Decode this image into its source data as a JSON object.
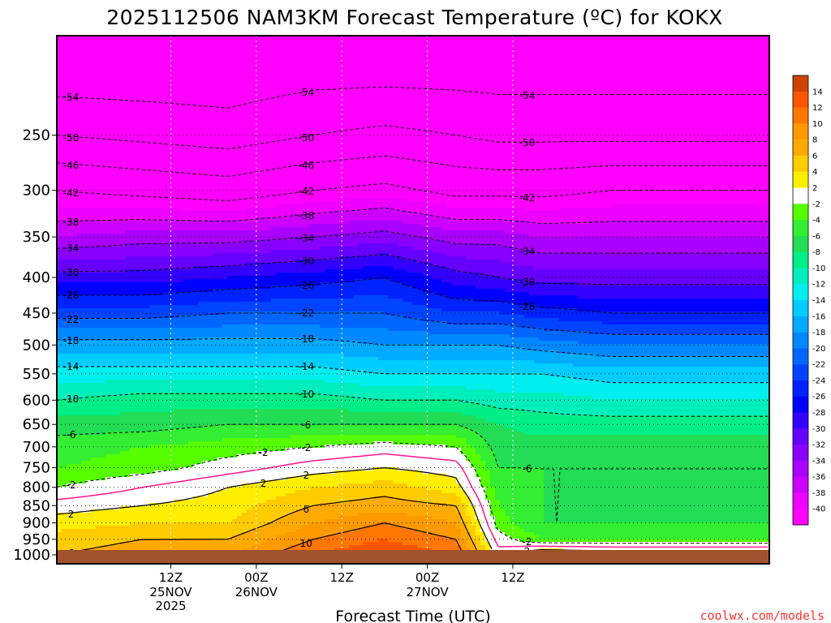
{
  "chart_data": {
    "type": "heatmap",
    "title": "2025112506 NAM3KM Forecast Temperature (ºC) for KOKX",
    "xlabel": "Forecast Time (UTC)",
    "ylabel": "",
    "x_range_hours": [
      -16,
      84
    ],
    "y_range_hpa": [
      1030,
      180
    ],
    "y_scale": "log",
    "y_ticks": [
      250,
      300,
      350,
      400,
      450,
      500,
      550,
      600,
      650,
      700,
      750,
      800,
      850,
      900,
      950,
      1000
    ],
    "y_tick_labels": [
      "250",
      "300",
      "350",
      "400",
      "450",
      "500",
      "550",
      "600",
      "650",
      "700",
      "750",
      "800",
      "850",
      "900",
      "950",
      "1000"
    ],
    "x_ticks": [
      {
        "hours": 0,
        "line1": "12Z",
        "line2": "25NOV",
        "line3": "2025"
      },
      {
        "hours": 12,
        "line1": "00Z",
        "line2": "26NOV",
        "line3": ""
      },
      {
        "hours": 24,
        "line1": "12Z",
        "line2": "",
        "line3": ""
      },
      {
        "hours": 36,
        "line1": "00Z",
        "line2": "27NOV",
        "line3": ""
      },
      {
        "hours": 48,
        "line1": "12Z",
        "line2": "",
        "line3": ""
      }
    ],
    "x_ticks_unit": "hours after 2025112512",
    "grid": true,
    "colorbar": {
      "position": "right",
      "labels": [
        "14",
        "12",
        "10",
        "8",
        "6",
        "4",
        "2",
        "-2",
        "-4",
        "-6",
        "-8",
        "-10",
        "-12",
        "-14",
        "-16",
        "-18",
        "-20",
        "-22",
        "-24",
        "-26",
        "-28",
        "-30",
        "-32",
        "-34",
        "-36",
        "-38",
        "-40"
      ],
      "colors": [
        "#cc4400",
        "#ff5500",
        "#ff7700",
        "#ff9900",
        "#ffaa00",
        "#ffcc00",
        "#ffee00",
        "#ffffff",
        "#55ff00",
        "#33ee33",
        "#22dd55",
        "#00ee88",
        "#00eebb",
        "#00eeee",
        "#00ccff",
        "#00aaff",
        "#0088ff",
        "#0066ff",
        "#0044ff",
        "#0022ff",
        "#0000ff",
        "#3300ff",
        "#6600ff",
        "#8800ff",
        "#aa00ff",
        "#cc00ff",
        "#ee00ff",
        "#ff00ff"
      ]
    },
    "ground_color": "#a0522d",
    "temperature_profile": {
      "pressure_hpa": [
        1000,
        950,
        900,
        850,
        800,
        750,
        700,
        650,
        600,
        550,
        500,
        450,
        400,
        350,
        300,
        250,
        200
      ],
      "series": [
        {
          "hours": -16,
          "values": [
            6,
            5,
            3,
            1,
            -2,
            -4,
            -5,
            -7,
            -10,
            -13,
            -17,
            -23,
            -29,
            -36,
            -42,
            -50,
            -57
          ]
        },
        {
          "hours": -4,
          "values": [
            7,
            6,
            4,
            2,
            0,
            -3,
            -4,
            -7,
            -9,
            -13,
            -17,
            -23,
            -29,
            -35,
            -43,
            -51,
            -57
          ]
        },
        {
          "hours": 8,
          "values": [
            8,
            6,
            4,
            3,
            2,
            -1,
            -3,
            -6,
            -9,
            -13,
            -17,
            -22,
            -28,
            -35,
            -44,
            -52,
            -57
          ]
        },
        {
          "hours": 20,
          "values": [
            12,
            10,
            8,
            6,
            4,
            1,
            -2,
            -6,
            -9,
            -13,
            -17,
            -22,
            -27,
            -34,
            -42,
            -50,
            -56
          ]
        },
        {
          "hours": 30,
          "values": [
            14,
            12,
            10,
            7,
            5,
            2,
            -1,
            -6,
            -10,
            -14,
            -18,
            -22,
            -26,
            -33,
            -41,
            -49,
            -56
          ]
        },
        {
          "hours": 40,
          "values": [
            12,
            10,
            8,
            6,
            3,
            1,
            -2,
            -6,
            -10,
            -14,
            -18,
            -24,
            -29,
            -35,
            -43,
            -50,
            -56
          ]
        },
        {
          "hours": 46,
          "values": [
            1,
            -1,
            -3,
            -4,
            -5,
            -6,
            -7,
            -8,
            -11,
            -14,
            -18,
            -24,
            -30,
            -35,
            -43,
            -51,
            -56
          ]
        },
        {
          "hours": 52,
          "values": [
            5,
            -4,
            -6,
            -6,
            -6,
            -6,
            -7,
            -9,
            -11,
            -14,
            -19,
            -25,
            -31,
            -36,
            -43,
            -51,
            -56
          ]
        },
        {
          "hours": 62,
          "values": [
            4,
            -4,
            -6,
            -6,
            -6,
            -6,
            -7,
            -9,
            -12,
            -15,
            -20,
            -26,
            -31,
            -36,
            -42,
            -51,
            -56
          ]
        }
      ]
    },
    "contour_levels_dashed": [
      -54,
      -50,
      -46,
      -42,
      -38,
      -34,
      -30,
      -26,
      -22,
      -18,
      -14,
      -10,
      -6,
      -2
    ],
    "contour_levels_solid": [
      2,
      6,
      10,
      14
    ],
    "contour_freezing": 0,
    "contour_labels": [
      "-54",
      "-54",
      "-54",
      "-50",
      "-50",
      "-50",
      "-46",
      "-46",
      "-42",
      "-42",
      "-42",
      "-38",
      "-38",
      "-34",
      "-34",
      "-34",
      "-30",
      "-30",
      "-30",
      "-26",
      "-26",
      "-26",
      "-22",
      "-22",
      "-18",
      "-18",
      "-14",
      "-14",
      "-10",
      "-10",
      "-6",
      "-6",
      "-6",
      "-2",
      "-2",
      "-2",
      "-2",
      "2",
      "2",
      "2",
      "2",
      "6",
      "6",
      "6",
      "10",
      "10",
      "10",
      "14"
    ]
  },
  "credit": "coolwx.com/models"
}
